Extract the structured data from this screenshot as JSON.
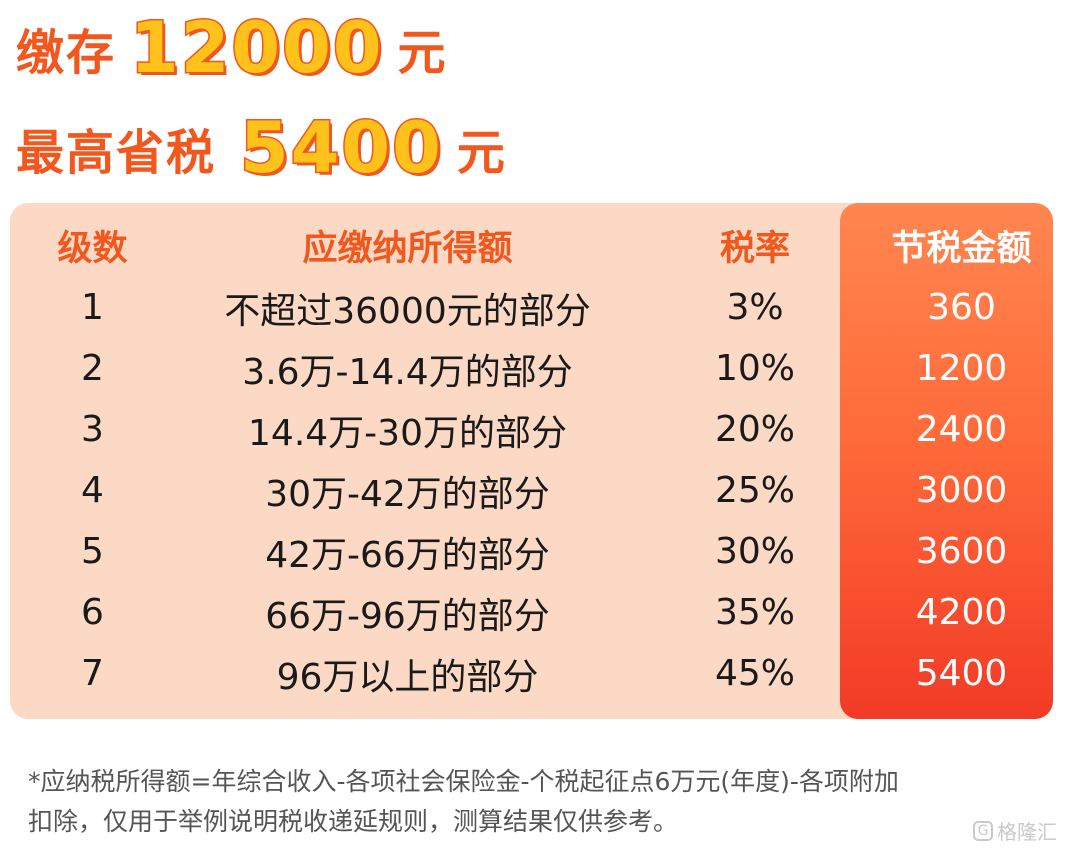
{
  "headline1": {
    "prefix": "缴存",
    "amount": "12000",
    "unit": "元"
  },
  "headline2": {
    "prefix": "最高省税",
    "amount": "5400",
    "unit": "元"
  },
  "table": {
    "headers": [
      "级数",
      "应缴纳所得额",
      "税率",
      "节税金额"
    ],
    "rows": [
      [
        "1",
        "不超过36000元的部分",
        "3%",
        "360"
      ],
      [
        "2",
        "3.6万-14.4万的部分",
        "10%",
        "1200"
      ],
      [
        "3",
        "14.4万-30万的部分",
        "20%",
        "2400"
      ],
      [
        "4",
        "30万-42万的部分",
        "25%",
        "3000"
      ],
      [
        "5",
        "42万-66万的部分",
        "30%",
        "3600"
      ],
      [
        "6",
        "66万-96万的部分",
        "35%",
        "4200"
      ],
      [
        "7",
        "96万以上的部分",
        "45%",
        "5400"
      ]
    ]
  },
  "footnote": {
    "line1": "*应纳税所得额=年综合收入-各项社会保险金-个税起征点6万元(年度)-各项附加",
    "line2": "扣除，仅用于举例说明税收递延规则，测算结果仅供参考。"
  },
  "watermark": {
    "logo": "G",
    "text": "格隆汇"
  },
  "colors": {
    "accent": "#f2571d",
    "amount_fill": "#ffc21a",
    "table_bg": "#fcd9c4",
    "highlight_top": "#ff8650",
    "highlight_bottom": "#f23a26"
  }
}
